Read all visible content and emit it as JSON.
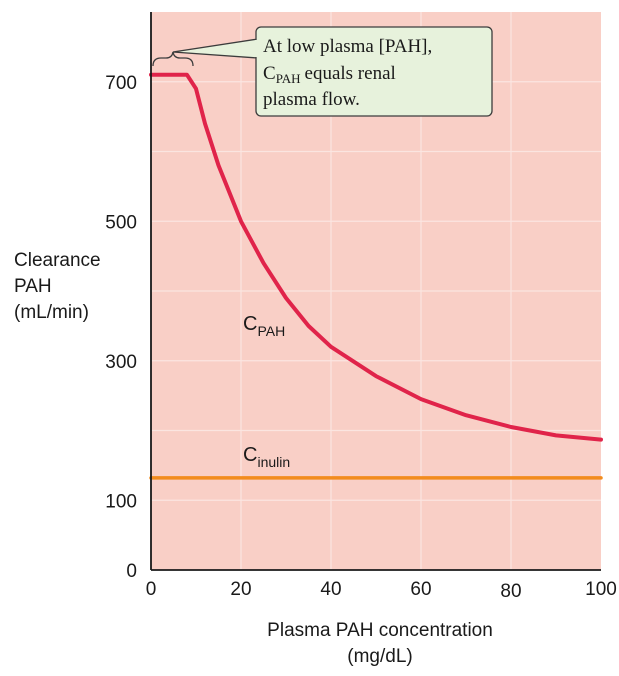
{
  "chart_data": {
    "type": "line",
    "xlabel": "Plasma PAH concentration",
    "xunit": "(mg/dL)",
    "ylabel": [
      "Clearance",
      "PAH",
      "(mL/min)"
    ],
    "xlim": [
      0,
      100
    ],
    "ylim": [
      0,
      800
    ],
    "x_ticks": [
      0,
      20,
      40,
      60,
      80,
      100
    ],
    "y_ticks": [
      0,
      100,
      300,
      500,
      700
    ],
    "grid": true,
    "series": [
      {
        "name": "C_PAH",
        "label_main": "C",
        "label_sub": "PAH",
        "color": "#e0244a",
        "x": [
          0,
          8,
          10,
          12,
          15,
          20,
          25,
          30,
          35,
          40,
          50,
          60,
          70,
          80,
          90,
          100
        ],
        "y": [
          710,
          710,
          690,
          640,
          580,
          500,
          440,
          390,
          350,
          320,
          278,
          245,
          222,
          205,
          193,
          187
        ]
      },
      {
        "name": "C_inulin",
        "label_main": "C",
        "label_sub": "inulin",
        "color": "#f28c1e",
        "x": [
          0,
          100
        ],
        "y": [
          132,
          132
        ]
      }
    ],
    "annotation": {
      "lines": [
        "At low plasma [PAH],",
        "equals renal",
        "plasma flow."
      ],
      "line2_main": "C",
      "line2_sub": "PAH"
    }
  },
  "colors": {
    "plot_bg": "#f9cfc6",
    "grid": "#fbe5e0",
    "annotation_bg": "#e7f2dc",
    "annotation_border": "#3c3c3c"
  }
}
